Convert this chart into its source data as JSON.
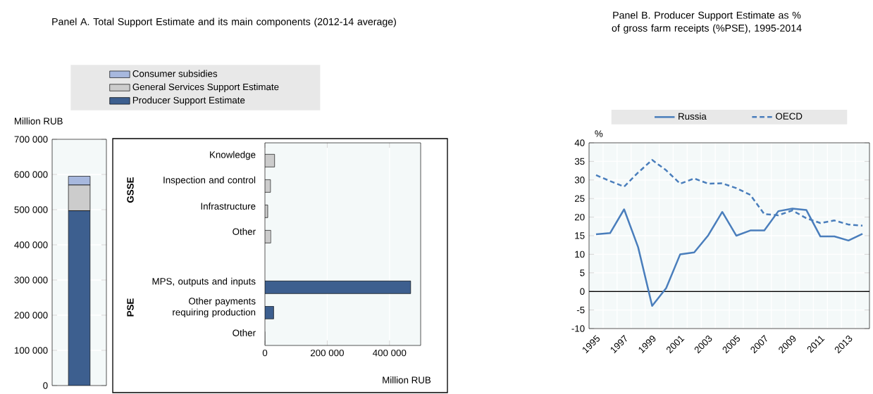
{
  "chart_data": [
    {
      "type": "bar",
      "stacked": true,
      "ylabel": "Million RUB",
      "categories": [
        null
      ],
      "series": [
        {
          "name": "Producer Support Estimate",
          "color": "#3d5f8f",
          "values": [
            497000
          ]
        },
        {
          "name": "General Services Support Estimate",
          "color": "#cccccc",
          "values": [
            73000
          ]
        },
        {
          "name": "Consumer subsidies",
          "color": "#a7b8de",
          "values": [
            25000
          ]
        }
      ],
      "ylim": [
        0,
        700000
      ],
      "yticks": [
        0,
        {
          "value": 100000,
          "label": "100 000"
        },
        {
          "value": 200000,
          "label": "200 000"
        },
        {
          "value": 300000,
          "label": "300 000"
        },
        {
          "value": 400000,
          "label": "400 000"
        },
        {
          "value": 500000,
          "label": "500 000"
        },
        {
          "value": 600000,
          "label": "600 000"
        },
        {
          "value": 700000,
          "label": "700 000"
        }
      ],
      "grid": "y",
      "legend": "top"
    },
    {
      "type": "bar",
      "orientation": "horizontal",
      "title": "Panel A. Total Support Estimate and its main components (2012-14 average)",
      "xlabel": "Million RUB",
      "categories": [
        "Knowledge",
        "Inspection and control",
        "Infrastructure",
        "Other",
        null,
        "MPS, outputs and inputs",
        "Other payments requiring production",
        "Other"
      ],
      "values": [
        31000,
        18000,
        9000,
        19000,
        null,
        468000,
        28000,
        0
      ],
      "colors": [
        "#cccccc",
        "#cccccc",
        "#cccccc",
        "#cccccc",
        "#3d5f8f",
        "#3d5f8f",
        "#3d5f8f",
        "#3d5f8f"
      ],
      "xlim": [
        0,
        500000
      ],
      "xticks": [
        0,
        {
          "value": 200000,
          "label": "200 000"
        },
        {
          "value": 400000,
          "label": "400 000"
        }
      ],
      "grid": "x",
      "annotations": [
        "GSSE",
        "PSE"
      ]
    },
    {
      "type": "line",
      "title": "Panel B. Producer Support Estimate as % of gross farm receipts (%PSE), 1995-2014",
      "ylabel": "%",
      "categories": [
        "1995",
        null,
        "1997",
        null,
        "1999",
        null,
        "2001",
        null,
        "2003",
        null,
        "2005",
        null,
        "2007",
        null,
        "2009",
        null,
        "2011",
        null,
        "2013",
        null
      ],
      "series": [
        {
          "name": "Russia",
          "color": "#4a7ebc",
          "line_style": "solid",
          "values": [
            15.4,
            15.7,
            22.1,
            11.9,
            -3.9,
            0.9,
            10.0,
            10.5,
            15.1,
            21.4,
            15.0,
            16.4,
            16.4,
            21.6,
            22.3,
            21.9,
            14.8,
            14.8,
            13.7,
            15.5
          ]
        },
        {
          "name": "OECD",
          "color": "#4a7ebc",
          "line_style": "dashed",
          "values": [
            31.3,
            29.7,
            28.2,
            32.0,
            35.4,
            32.6,
            29.0,
            30.4,
            29.0,
            29.1,
            27.8,
            26.0,
            20.8,
            20.5,
            21.8,
            19.7,
            18.4,
            19.1,
            18.0,
            17.7
          ]
        }
      ],
      "ylim": [
        -10,
        40
      ],
      "yticks": [
        -10,
        -5,
        0,
        5,
        10,
        15,
        20,
        25,
        30,
        35,
        40
      ],
      "grid": true,
      "legend": "top"
    }
  ]
}
